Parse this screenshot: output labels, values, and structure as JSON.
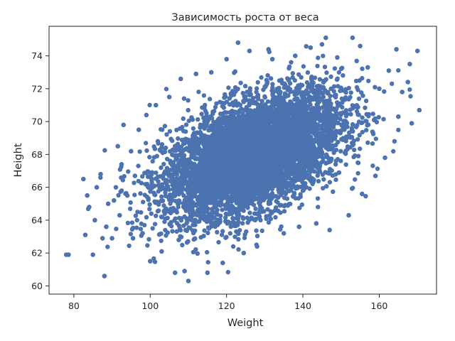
{
  "chart_data": {
    "type": "scatter",
    "title": "Зависимость роста от веса",
    "xlabel": "Weight",
    "ylabel": "Height",
    "xlim": [
      73.5,
      175
    ],
    "ylim": [
      59.5,
      75.8
    ],
    "xticks": [
      80,
      100,
      120,
      140,
      160
    ],
    "yticks": [
      60,
      62,
      64,
      66,
      68,
      70,
      72,
      74
    ],
    "grid": false,
    "marker_color": "#4c72b0",
    "series": [
      {
        "points": [
          [
            78.0,
            61.9
          ],
          [
            78.6,
            61.9
          ],
          [
            82.5,
            66.5
          ],
          [
            83.0,
            63.1
          ],
          [
            83.5,
            65.5
          ],
          [
            84.0,
            64.8
          ],
          [
            85.0,
            61.9
          ],
          [
            85.5,
            64.0
          ],
          [
            86.0,
            66.0
          ],
          [
            87.0,
            66.8
          ],
          [
            87.5,
            62.9
          ],
          [
            88.0,
            60.6
          ],
          [
            88.5,
            63.6
          ],
          [
            89.0,
            65.0
          ],
          [
            90.0,
            62.9
          ],
          [
            90.5,
            65.2
          ],
          [
            91.0,
            66.0
          ],
          [
            91.5,
            68.5
          ],
          [
            92.0,
            64.3
          ],
          [
            92.5,
            67.4
          ],
          [
            93.0,
            69.8
          ],
          [
            94.0,
            65.5
          ],
          [
            95.0,
            68.2
          ],
          [
            95.5,
            62.9
          ],
          [
            96.0,
            66.7
          ],
          [
            97.0,
            69.5
          ],
          [
            98.0,
            63.2
          ],
          [
            99.0,
            70.4
          ],
          [
            100.0,
            61.5
          ],
          [
            100.5,
            66.9
          ],
          [
            101.5,
            71.0
          ],
          [
            102.0,
            68.8
          ],
          [
            103.0,
            62.1
          ],
          [
            104.0,
            66.3
          ],
          [
            105.0,
            71.5
          ],
          [
            106.5,
            60.8
          ],
          [
            108.0,
            72.6
          ],
          [
            109.0,
            60.9
          ],
          [
            110.0,
            60.3
          ],
          [
            112.0,
            72.9
          ],
          [
            115.0,
            60.8
          ],
          [
            116.0,
            73.0
          ],
          [
            119.0,
            61.4
          ],
          [
            120.0,
            73.8
          ],
          [
            123.0,
            74.8
          ],
          [
            124.5,
            62.0
          ],
          [
            126.0,
            74.3
          ],
          [
            128.0,
            62.4
          ],
          [
            131.0,
            74.4
          ],
          [
            132.0,
            73.8
          ],
          [
            135.0,
            63.2
          ],
          [
            138.0,
            74.0
          ],
          [
            139.0,
            63.6
          ],
          [
            142.0,
            74.5
          ],
          [
            143.5,
            63.8
          ],
          [
            145.0,
            74.7
          ],
          [
            146.0,
            75.1
          ],
          [
            147.0,
            63.4
          ],
          [
            149.0,
            73.9
          ],
          [
            152.0,
            64.3
          ],
          [
            153.0,
            75.1
          ],
          [
            155.0,
            74.6
          ],
          [
            155.5,
            65.6
          ],
          [
            157.0,
            73.3
          ],
          [
            159.0,
            66.7
          ],
          [
            160.0,
            72.0
          ],
          [
            161.5,
            67.8
          ],
          [
            162.5,
            73.1
          ],
          [
            164.0,
            68.8
          ],
          [
            164.5,
            74.4
          ],
          [
            165.0,
            70.3
          ],
          [
            166.0,
            71.8
          ],
          [
            167.5,
            72.4
          ],
          [
            168.0,
            73.5
          ],
          [
            168.5,
            69.9
          ],
          [
            170.0,
            74.3
          ],
          [
            170.5,
            70.7
          ]
        ]
      }
    ]
  }
}
